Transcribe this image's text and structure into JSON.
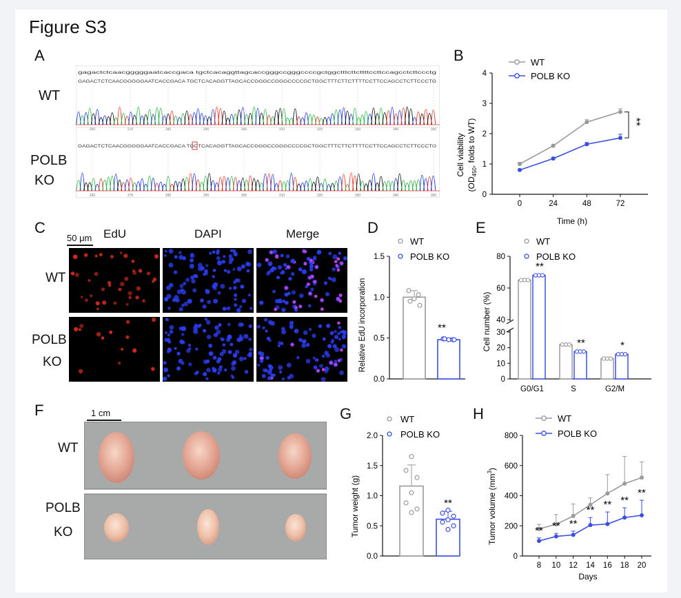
{
  "figure_title": "Figure S3",
  "panels": {
    "A": {
      "label": "A",
      "row_labels": [
        "WT",
        "POLB",
        "KO"
      ],
      "wt_seq_lower": "gagactctcaacgggggaatcaccgaca tgctcacaggttagcaccgggccgggccccgctggctttcttcttttccttccagcctcttccctg",
      "wt_seq_upper": "GAGACTCTCAACGGGGGAATCACCGACA TGCTCACAGGTTAGCACCGGGCCGGGCCCCGCTGGCTTTCTTCTTTTCCTTCCAGCCTCTTCCCTG",
      "ko_seq": "GAGACTCTCAACGGGGGAATCACCGACA TGCTCACAGGTTAGCACCGGGCCGGGCCCCGCTGGCTTTCTTCTTTTCCTTCCAGCCTCTTCCCTG",
      "ticks": [
        "260",
        "270",
        "280",
        "290",
        "300",
        "310",
        "320",
        "330",
        "340",
        "350"
      ]
    },
    "B": {
      "label": "B",
      "sig": "**",
      "chart_data": {
        "type": "line",
        "xlabel": "Time (h)",
        "ylabel_main": "Cell viability",
        "ylabel_sub": "(OD",
        "ylabel_subscript": "450",
        "ylabel_tail": ", folds to WT)",
        "x": [
          0,
          24,
          48,
          72
        ],
        "ylim": [
          0,
          4
        ],
        "yticks": [
          "0",
          "1",
          "2",
          "3",
          "4"
        ],
        "series": [
          {
            "name": "WT",
            "color": "#9a9a9a",
            "values": [
              1.0,
              1.6,
              2.38,
              2.72
            ],
            "err": [
              0.05,
              0.05,
              0.08,
              0.1
            ]
          },
          {
            "name": "POLB KO",
            "color": "#3a4ee6",
            "values": [
              0.8,
              1.18,
              1.65,
              1.86
            ],
            "err": [
              0.03,
              0.04,
              0.06,
              0.12
            ]
          }
        ]
      }
    },
    "C": {
      "label": "C",
      "scale_bar": "50 μm",
      "col_labels": [
        "EdU",
        "DAPI",
        "Merge"
      ],
      "row_labels": [
        "WT",
        "POLB",
        "KO"
      ]
    },
    "D": {
      "label": "D",
      "sig": "**",
      "chart_data": {
        "type": "bar",
        "ylabel": "Relative EdU incorporation",
        "ylim": [
          0,
          1.5
        ],
        "yticks": [
          "0.0",
          "0.5",
          "1.0",
          "1.5"
        ],
        "series": [
          {
            "name": "WT",
            "color": "#9a9a9a",
            "value": 1.0,
            "err": 0.08,
            "points": [
              1.08,
              1.03,
              0.98,
              0.95,
              0.9
            ]
          },
          {
            "name": "POLB KO",
            "color": "#3a4ee6",
            "value": 0.48,
            "err": 0.02,
            "points": [
              0.49,
              0.48,
              0.48,
              0.49,
              0.48
            ]
          }
        ]
      }
    },
    "E": {
      "label": "E",
      "ylabel": "Cell number  (%)",
      "chart_data": {
        "type": "bar",
        "categories": [
          "G0/G1",
          "S",
          "G2/M"
        ],
        "yticks_low": [
          "0",
          "10",
          "20",
          "30"
        ],
        "yticks_high": [
          "40",
          "60",
          "80"
        ],
        "series": [
          {
            "name": "WT",
            "color": "#9a9a9a",
            "values": [
              65,
              22,
              13
            ]
          },
          {
            "name": "POLB KO",
            "color": "#3a4ee6",
            "values": [
              68,
              17.5,
              15.8
            ]
          }
        ],
        "sig": [
          "**",
          "**",
          "*"
        ]
      }
    },
    "F": {
      "label": "F",
      "scale_bar": "1 cm",
      "row_labels": [
        "WT",
        "POLB",
        "KO"
      ]
    },
    "G": {
      "label": "G",
      "sig": "**",
      "chart_data": {
        "type": "bar",
        "ylabel": "Tumor weight (g)",
        "ylim": [
          0,
          2.0
        ],
        "yticks": [
          "0.0",
          "0.5",
          "1.0",
          "1.5",
          "2.0"
        ],
        "series": [
          {
            "name": "WT",
            "color": "#9a9a9a",
            "value": 1.16,
            "err": 0.35,
            "points": [
              1.65,
              1.42,
              1.3,
              1.05,
              0.88,
              0.78,
              0.72
            ]
          },
          {
            "name": "POLB KO",
            "color": "#3a4ee6",
            "value": 0.61,
            "err": 0.13,
            "points": [
              0.76,
              0.71,
              0.66,
              0.6,
              0.56,
              0.5,
              0.44
            ]
          }
        ]
      }
    },
    "H": {
      "label": "H",
      "chart_data": {
        "type": "line",
        "xlabel": "Days",
        "ylabel": "Tumor volume (mm",
        "ylabel_sup": "3",
        "ylabel_tail": ")",
        "x": [
          8,
          10,
          12,
          14,
          16,
          18,
          20
        ],
        "ylim": [
          0,
          800
        ],
        "yticks": [
          "0",
          "200",
          "400",
          "600",
          "800"
        ],
        "series": [
          {
            "name": "WT",
            "color": "#9a9a9a",
            "values": [
              180,
              210,
              265,
              340,
              415,
              480,
              520
            ],
            "err": [
              30,
              65,
              80,
              45,
              125,
              180,
              105
            ]
          },
          {
            "name": "POLB KO",
            "color": "#3a4ee6",
            "values": [
              100,
              130,
              140,
              205,
              212,
              255,
              270
            ],
            "err": [
              20,
              20,
              25,
              50,
              80,
              65,
              100
            ]
          }
        ],
        "sig": [
          "**",
          "**",
          "**",
          "**",
          "**",
          "**",
          "**"
        ]
      }
    }
  }
}
